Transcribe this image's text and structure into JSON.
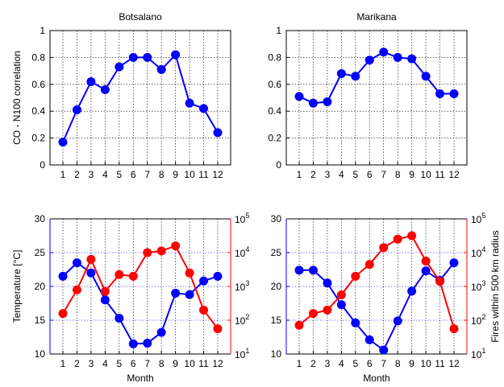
{
  "chart_data": [
    {
      "type": "line",
      "title": "Botsalano",
      "xlabel": "",
      "ylabel": "CO - N100 correlation",
      "x": [
        1,
        2,
        3,
        4,
        5,
        6,
        7,
        8,
        9,
        10,
        11,
        12
      ],
      "xticks": [
        "1",
        "2",
        "3",
        "4",
        "5",
        "6",
        "7",
        "8",
        "9",
        "10",
        "11",
        "12"
      ],
      "ylim": [
        0,
        1
      ],
      "yticks": [
        "0",
        "0.2",
        "0.4",
        "0.6",
        "0.8",
        "1"
      ],
      "grid": true,
      "series": [
        {
          "values": [
            0.17,
            0.41,
            0.62,
            0.56,
            0.73,
            0.8,
            0.8,
            0.71,
            0.82,
            0.46,
            0.42,
            0.24
          ],
          "color": "#0000ff"
        }
      ]
    },
    {
      "type": "line",
      "title": "Marikana",
      "xlabel": "",
      "ylabel": "",
      "x": [
        1,
        2,
        3,
        4,
        5,
        6,
        7,
        8,
        9,
        10,
        11,
        12
      ],
      "xticks": [
        "1",
        "2",
        "3",
        "4",
        "5",
        "6",
        "7",
        "8",
        "9",
        "10",
        "11",
        "12"
      ],
      "ylim": [
        0,
        1
      ],
      "yticks": [
        "0",
        "0.2",
        "0.4",
        "0.6",
        "0.8",
        "1"
      ],
      "grid": true,
      "series": [
        {
          "values": [
            0.51,
            0.46,
            0.47,
            0.68,
            0.66,
            0.78,
            0.84,
            0.8,
            0.79,
            0.66,
            0.53,
            0.53
          ],
          "color": "#0000ff"
        }
      ]
    },
    {
      "type": "line",
      "title": "",
      "xlabel": "Month",
      "ylabel": "Temperature [°C]",
      "y2label": "",
      "x": [
        1,
        2,
        3,
        4,
        5,
        6,
        7,
        8,
        9,
        10,
        11,
        12
      ],
      "xticks": [
        "1",
        "2",
        "3",
        "4",
        "5",
        "6",
        "7",
        "8",
        "9",
        "10",
        "11",
        "12"
      ],
      "ylim": [
        10,
        30
      ],
      "yticks": [
        "10",
        "15",
        "20",
        "25",
        "30"
      ],
      "y2scale": "log",
      "y2lim": [
        1,
        5
      ],
      "y2ticks": [
        {
          "base": "10",
          "exp": "1"
        },
        {
          "base": "10",
          "exp": "2"
        },
        {
          "base": "10",
          "exp": "3"
        },
        {
          "base": "10",
          "exp": "4"
        },
        {
          "base": "10",
          "exp": "5"
        }
      ],
      "grid": true,
      "series": [
        {
          "axis": "left",
          "values": [
            21.5,
            23.5,
            22.0,
            18.0,
            15.3,
            11.5,
            11.6,
            13.2,
            19.0,
            18.8,
            20.8,
            21.5
          ],
          "color": "#0000ff"
        },
        {
          "axis": "right",
          "values": [
            158,
            794,
            6310,
            708,
            2240,
            2000,
            10000,
            11220,
            15850,
            2510,
            200,
            56
          ],
          "color": "#ff0000"
        }
      ]
    },
    {
      "type": "line",
      "title": "",
      "xlabel": "Month",
      "ylabel": "",
      "y2label": "Fires within 500 km radius",
      "x": [
        1,
        2,
        3,
        4,
        5,
        6,
        7,
        8,
        9,
        10,
        11,
        12
      ],
      "xticks": [
        "1",
        "2",
        "3",
        "4",
        "5",
        "6",
        "7",
        "8",
        "9",
        "10",
        "11",
        "12"
      ],
      "ylim": [
        10,
        30
      ],
      "yticks": [
        "10",
        "15",
        "20",
        "25",
        "30"
      ],
      "y2scale": "log",
      "y2lim": [
        1,
        5
      ],
      "y2ticks": [
        {
          "base": "10",
          "exp": "1"
        },
        {
          "base": "10",
          "exp": "2"
        },
        {
          "base": "10",
          "exp": "3"
        },
        {
          "base": "10",
          "exp": "4"
        },
        {
          "base": "10",
          "exp": "5"
        }
      ],
      "grid": true,
      "series": [
        {
          "axis": "left",
          "values": [
            22.4,
            22.4,
            20.5,
            17.3,
            14.6,
            12.1,
            10.6,
            14.9,
            19.3,
            22.3,
            20.9,
            23.5
          ],
          "color": "#0000ff"
        },
        {
          "axis": "right",
          "values": [
            71,
            158,
            200,
            562,
            1995,
            4470,
            14130,
            25120,
            31620,
            5620,
            1410,
            56
          ],
          "color": "#ff0000"
        }
      ]
    }
  ]
}
